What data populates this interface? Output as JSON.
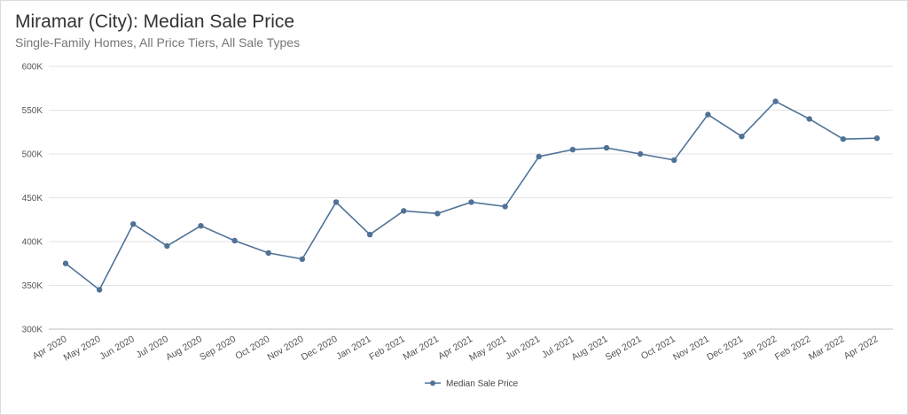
{
  "chart_data": {
    "type": "line",
    "title": "Miramar (City): Median Sale Price",
    "subtitle": "Single-Family Homes, All Price Tiers, All Sale Types",
    "xlabel": "",
    "ylabel": "",
    "ylim": [
      300000,
      600000
    ],
    "y_ticks": [
      300000,
      350000,
      400000,
      450000,
      500000,
      550000,
      600000
    ],
    "y_tick_labels": [
      "300K",
      "350K",
      "400K",
      "450K",
      "500K",
      "550K",
      "600K"
    ],
    "grid": true,
    "legend_position": "bottom",
    "categories": [
      "Apr 2020",
      "May 2020",
      "Jun 2020",
      "Jul 2020",
      "Aug 2020",
      "Sep 2020",
      "Oct 2020",
      "Nov 2020",
      "Dec 2020",
      "Jan 2021",
      "Feb 2021",
      "Mar 2021",
      "Apr 2021",
      "May 2021",
      "Jun 2021",
      "Jul 2021",
      "Aug 2021",
      "Sep 2021",
      "Oct 2021",
      "Nov 2021",
      "Dec 2021",
      "Jan 2022",
      "Feb 2022",
      "Mar 2022",
      "Apr 2022"
    ],
    "series": [
      {
        "name": "Median Sale Price",
        "color": "#4f7396",
        "values": [
          375000,
          345000,
          420000,
          395000,
          418000,
          401000,
          387000,
          380000,
          445000,
          408000,
          435000,
          432000,
          445000,
          440000,
          497000,
          505000,
          507000,
          500000,
          493000,
          545000,
          520000,
          560000,
          540000,
          517000,
          518000
        ]
      }
    ]
  }
}
